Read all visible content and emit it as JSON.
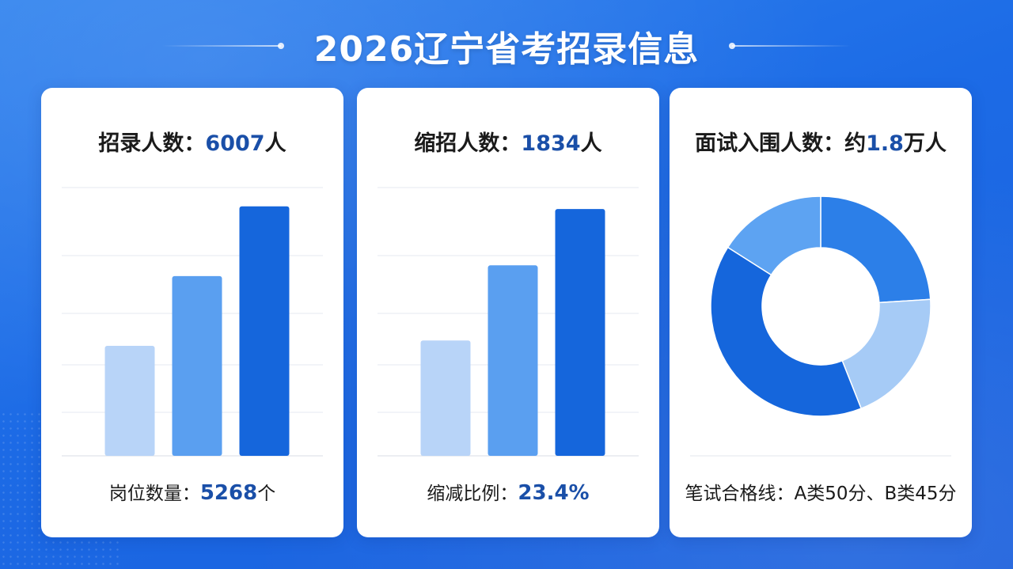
{
  "title": "2026辽宁省考招录信息",
  "colors": {
    "light": "#b8d4f8",
    "mid": "#5a9ff0",
    "dark": "#1566dc",
    "accent_text": "#1a4fa8",
    "background": "#1c6be6"
  },
  "panels": [
    {
      "head_label": "招录人数：",
      "head_value": "6007",
      "head_unit": "人",
      "foot_label": "岗位数量：",
      "foot_value": "5268",
      "foot_unit": "个"
    },
    {
      "head_label": "缩招人数：",
      "head_value": "1834",
      "head_unit": "人",
      "foot_label": "缩减比例：",
      "foot_value": "23.4%",
      "foot_unit": ""
    },
    {
      "head_label": "面试入围人数：约",
      "head_value": "1.8",
      "head_unit": "万人",
      "foot_label": "笔试合格线：A类50分、B类45分",
      "foot_value": "",
      "foot_unit": ""
    }
  ],
  "chart_data": [
    {
      "type": "bar",
      "categories": [
        "",
        "",
        ""
      ],
      "values": [
        41,
        67,
        93
      ],
      "ylim": [
        0,
        100
      ],
      "grid": true,
      "colors": [
        "#b8d4f8",
        "#5a9ff0",
        "#1566dc"
      ]
    },
    {
      "type": "bar",
      "categories": [
        "",
        "",
        ""
      ],
      "values": [
        43,
        71,
        92
      ],
      "ylim": [
        0,
        100
      ],
      "grid": true,
      "colors": [
        "#b8d4f8",
        "#5a9ff0",
        "#1566dc"
      ]
    },
    {
      "type": "pie",
      "donut": true,
      "values": [
        24,
        20,
        40,
        16
      ],
      "colors": [
        "#2c7fe8",
        "#a6cbf6",
        "#1566dc",
        "#5da3f2"
      ]
    }
  ]
}
